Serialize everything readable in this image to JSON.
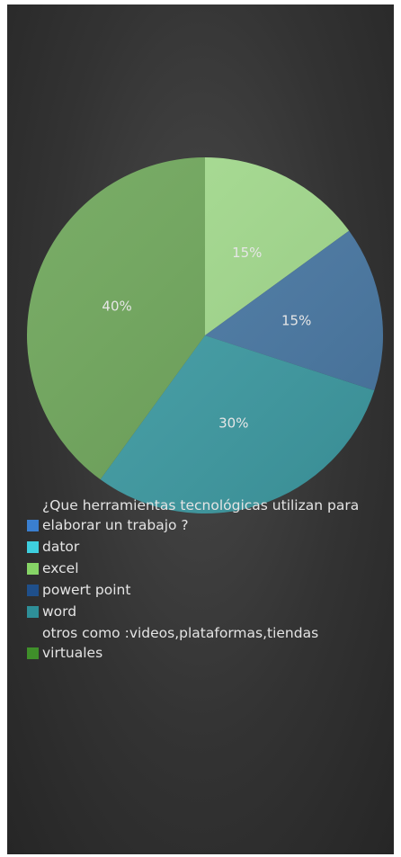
{
  "chart_data": {
    "type": "pie",
    "categories": [
      "¿Que herramientas tecnológicas utilizan  para elaborar un trabajo ?",
      "dator",
      "excel",
      "powert point",
      "word",
      "otros como :videos,plataformas,tiendas virtuales"
    ],
    "values": [
      0,
      0,
      15,
      15,
      30,
      40
    ],
    "value_labels": [
      null,
      null,
      "15%",
      "15%",
      "30%",
      "40%"
    ],
    "colors": [
      "#3a7fd0",
      "#3ecfdf",
      "#86d466",
      "#1f4f8a",
      "#2e8f98",
      "#3f8f2a"
    ],
    "slice_colors": [
      "#3a7fd0",
      "#3ecfdf",
      "#a4dc8e",
      "#4a7aa6",
      "#3f9ea6",
      "#6ea65a"
    ]
  }
}
